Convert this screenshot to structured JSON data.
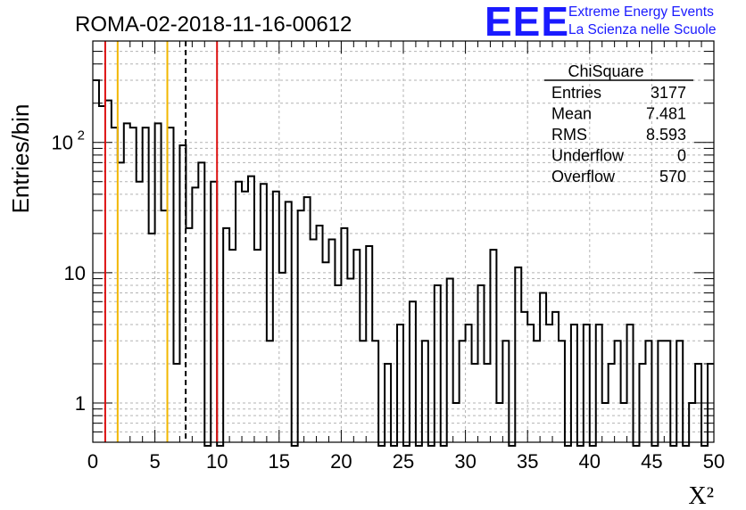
{
  "header": {
    "run_title": "ROMA-02-2018-11-16-00612"
  },
  "logo": {
    "mark": "EEE",
    "line1": "Extreme Energy Events",
    "line2": "La Scienza nelle Scuole",
    "color": "#1a1aff"
  },
  "stats_box": {
    "title": "ChiSquare",
    "rows": [
      {
        "label": "Entries",
        "value": "3177"
      },
      {
        "label": "Mean",
        "value": "7.481"
      },
      {
        "label": "RMS",
        "value": "8.593"
      },
      {
        "label": "Underflow",
        "value": "0"
      },
      {
        "label": "Overflow",
        "value": "570"
      }
    ]
  },
  "chart_data": {
    "type": "histogram",
    "xlabel": "X²",
    "ylabel": "Entries/bin",
    "xlim": [
      0,
      50
    ],
    "ylim": [
      0.5,
      600
    ],
    "yscale": "log",
    "grid": true,
    "bin_width": 0.5,
    "x_ticks": [
      "0",
      "5",
      "10",
      "15",
      "20",
      "25",
      "30",
      "35",
      "40",
      "45",
      "50"
    ],
    "y_ticks": [
      {
        "value": 1,
        "label": "1"
      },
      {
        "value": 10,
        "label": "10"
      },
      {
        "value": 100,
        "label": "10",
        "exponent": "2"
      }
    ],
    "values": [
      300,
      190,
      210,
      130,
      70,
      140,
      130,
      50,
      130,
      20,
      140,
      30,
      130,
      2,
      95,
      22,
      45,
      70,
      0,
      50,
      0,
      22,
      15,
      50,
      42,
      55,
      15,
      48,
      3,
      42,
      10,
      35,
      0,
      30,
      38,
      18,
      23,
      12,
      18,
      8,
      22,
      9,
      15,
      3,
      16,
      3,
      0,
      2,
      0,
      4,
      0,
      6,
      0,
      3,
      0,
      8,
      0,
      9,
      1,
      3,
      4,
      2,
      8,
      2,
      15,
      1,
      3,
      0,
      11,
      5,
      4,
      3,
      7,
      4,
      5,
      3,
      0,
      4,
      0,
      4,
      0,
      4,
      1,
      2,
      3,
      1,
      4,
      0,
      2,
      3,
      0,
      3,
      3,
      0,
      3,
      0,
      1,
      2,
      0,
      2
    ],
    "reference_lines": [
      {
        "x": 1.0,
        "color": "#dd1111",
        "style": "solid"
      },
      {
        "x": 2.0,
        "color": "#f2b700",
        "style": "solid"
      },
      {
        "x": 6.0,
        "color": "#f2b700",
        "style": "solid"
      },
      {
        "x": 7.48,
        "color": "#000000",
        "style": "dashed"
      },
      {
        "x": 10.0,
        "color": "#dd1111",
        "style": "solid"
      }
    ]
  }
}
